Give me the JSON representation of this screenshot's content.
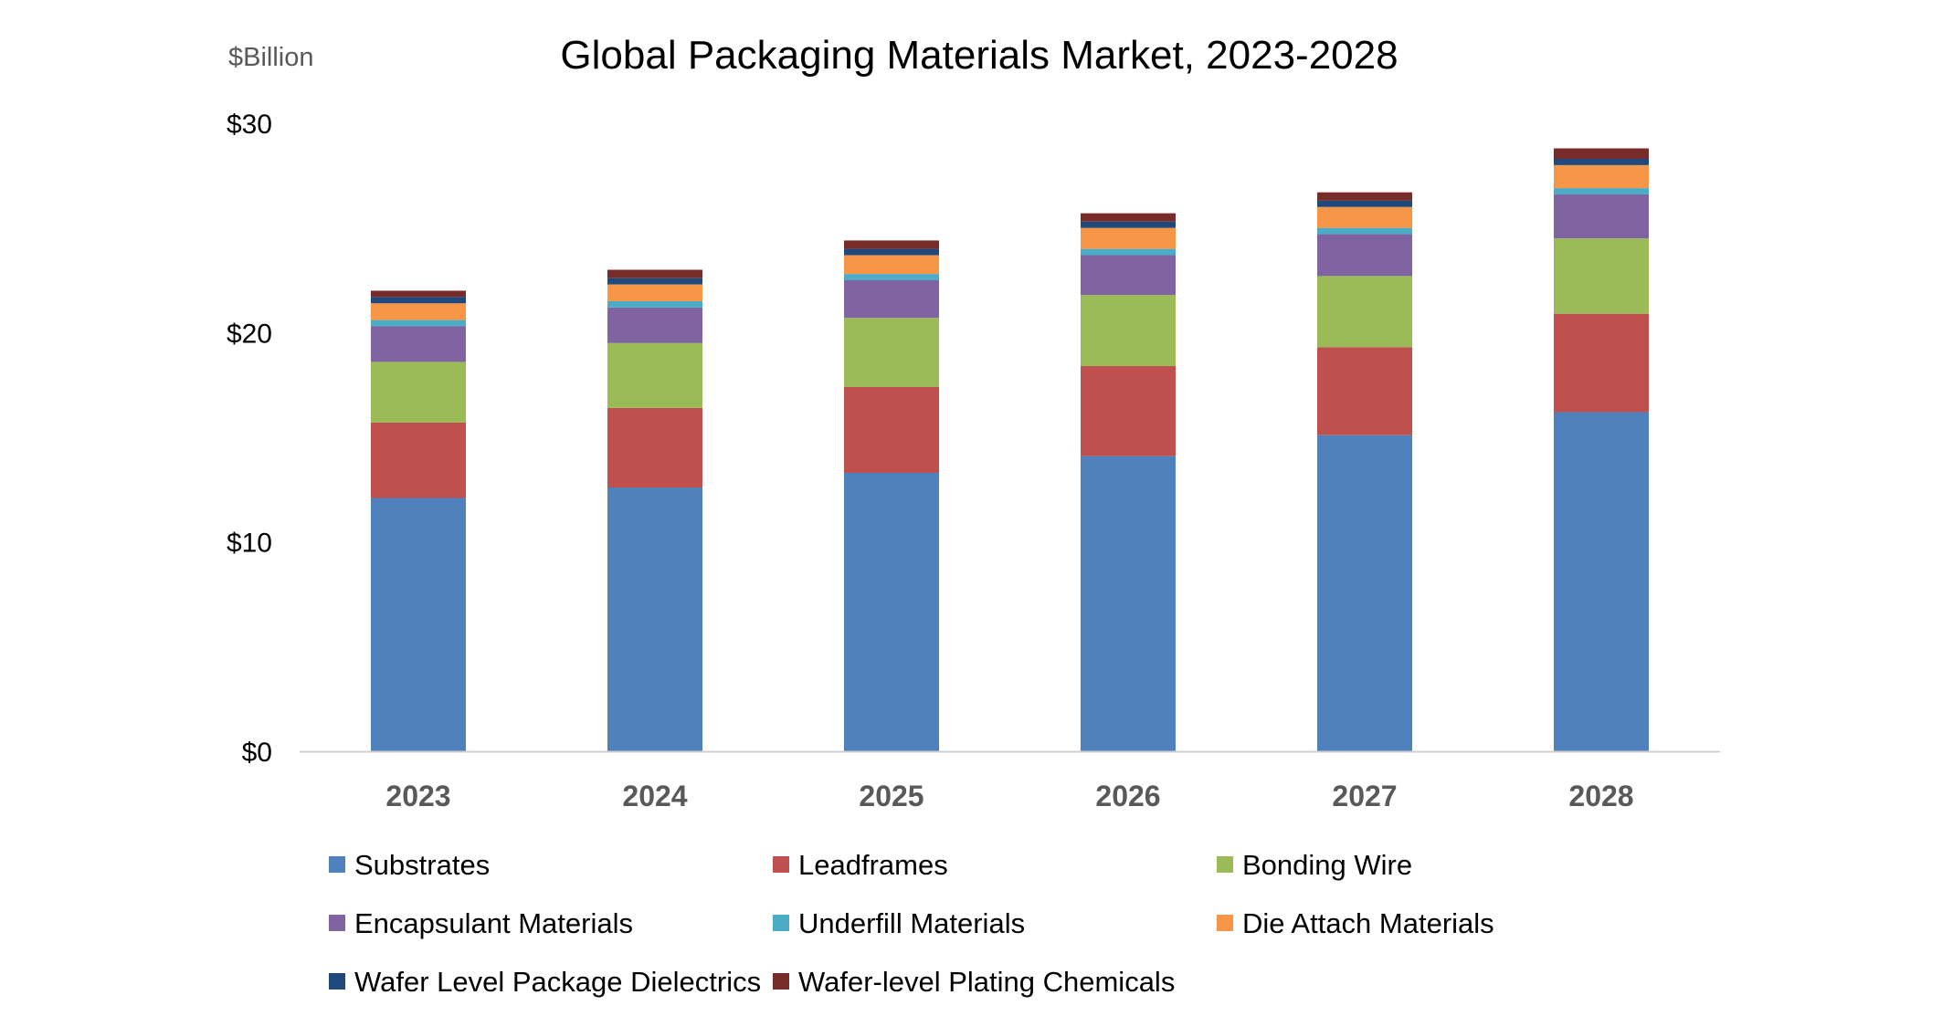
{
  "chart_data": {
    "type": "bar",
    "stacked": true,
    "title": "Global Packaging Materials Market, 2023-2028",
    "unit_label": "$Billion",
    "xlabel": "",
    "ylabel": "",
    "ylim": [
      0,
      30
    ],
    "y_ticks": [
      0,
      10,
      20,
      30
    ],
    "y_tick_labels": [
      "$0",
      "$10",
      "$20",
      "$30"
    ],
    "grid": false,
    "legend_position": "bottom",
    "categories": [
      "2023",
      "2024",
      "2025",
      "2026",
      "2027",
      "2028"
    ],
    "series": [
      {
        "name": "Substrates",
        "color": "#4F81BD",
        "values": [
          12.1,
          12.6,
          13.3,
          14.1,
          15.1,
          16.2
        ]
      },
      {
        "name": "Leadframes",
        "color": "#C0504D",
        "values": [
          3.6,
          3.8,
          4.1,
          4.3,
          4.2,
          4.7
        ]
      },
      {
        "name": "Bonding Wire",
        "color": "#9BBB59",
        "values": [
          2.9,
          3.1,
          3.3,
          3.4,
          3.4,
          3.6
        ]
      },
      {
        "name": "Encapsulant Materials",
        "color": "#8064A2",
        "values": [
          1.7,
          1.7,
          1.8,
          1.9,
          2.0,
          2.1
        ]
      },
      {
        "name": "Underfill Materials",
        "color": "#4BACC6",
        "values": [
          0.3,
          0.3,
          0.3,
          0.3,
          0.3,
          0.3
        ]
      },
      {
        "name": "Die Attach Materials",
        "color": "#F79646",
        "values": [
          0.8,
          0.8,
          0.9,
          1.0,
          1.0,
          1.1
        ]
      },
      {
        "name": "Wafer Level Package Dielectrics",
        "color": "#1F497D",
        "values": [
          0.3,
          0.3,
          0.3,
          0.3,
          0.3,
          0.3
        ]
      },
      {
        "name": "Wafer-level Plating Chemicals",
        "color": "#772C2A",
        "values": [
          0.3,
          0.4,
          0.4,
          0.4,
          0.4,
          0.5
        ]
      }
    ]
  }
}
